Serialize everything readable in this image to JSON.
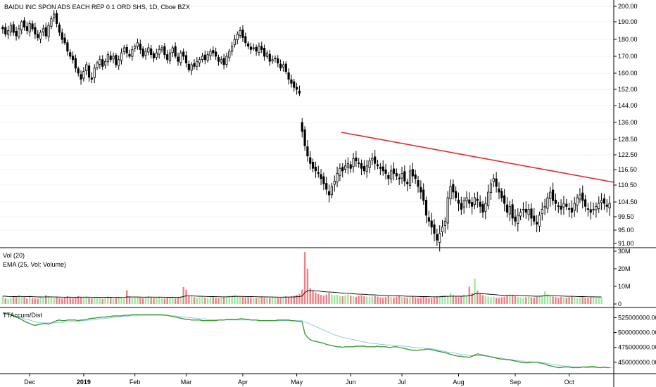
{
  "header": {
    "title": "BAIDU INC SPON ADS EACH REP 0.1 ORD SHS, 1D, Cboe BZX"
  },
  "x_axis": {
    "labels": [
      "Dec",
      "2019",
      "Feb",
      "Mar",
      "Apr",
      "May",
      "Jun",
      "Jul",
      "Aug",
      "Sep",
      "Oct"
    ],
    "label_index": [
      10,
      30,
      49,
      68,
      89,
      109,
      129,
      148,
      169,
      190,
      210
    ]
  },
  "colors": {
    "up": "#ffffff",
    "down": "#000000",
    "wick": "#000000",
    "trendline": "#e8292c",
    "vol_up": "#9ee89e",
    "vol_down": "#f07f84",
    "ema": "#000000",
    "accum": "#3f9c35",
    "accum_ma": "#8ec9e6"
  },
  "chart_data": [
    {
      "type": "candlestick",
      "pane": "price",
      "title": "BAIDU INC SPON ADS EACH REP 0.1 ORD SHS, 1D, Cboe BZX",
      "y_ticks": [
        91.0,
        95.0,
        99.5,
        104.5,
        110.5,
        116.5,
        122.5,
        128.5,
        136.0,
        144.0,
        152.0,
        160.0,
        170.0,
        180.0,
        190.0,
        200.0
      ],
      "ylim": [
        89.5,
        203
      ],
      "num_bars": 226,
      "legend": null,
      "closes": [
        186,
        183,
        185,
        188,
        184,
        182,
        186,
        190,
        187,
        185,
        189,
        186,
        183,
        181,
        184,
        186,
        182,
        188,
        192,
        195,
        189,
        184,
        180,
        178,
        173,
        170,
        168,
        163,
        160,
        157,
        161,
        165,
        158,
        157,
        163,
        166,
        168,
        164,
        167,
        171,
        168,
        170,
        165,
        168,
        172,
        175,
        172,
        170,
        174,
        176,
        178,
        174,
        170,
        173,
        175,
        171,
        169,
        172,
        174,
        175,
        171,
        168,
        172,
        175,
        170,
        167,
        172,
        170,
        166,
        162,
        165,
        164,
        167,
        168,
        170,
        168,
        171,
        173,
        172,
        170,
        167,
        168,
        165,
        170,
        173,
        176,
        180,
        183,
        185,
        181,
        178,
        176,
        174,
        175,
        173,
        176,
        174,
        170,
        172,
        167,
        168,
        169,
        166,
        163,
        165,
        161,
        157,
        155,
        153,
        152,
        150,
        132,
        126,
        122,
        119,
        117,
        116,
        115,
        113,
        111,
        109,
        107,
        110,
        112,
        115,
        117,
        116,
        118,
        119,
        117,
        121,
        120,
        119,
        117,
        116,
        118,
        120,
        121,
        119,
        118,
        117,
        116,
        115,
        113,
        116,
        115,
        114,
        113,
        115,
        112,
        111,
        116,
        114,
        113,
        110,
        108,
        105,
        100,
        98,
        96,
        94,
        92,
        94,
        96,
        98,
        106,
        110,
        108,
        106,
        104,
        102,
        105,
        106,
        104,
        103,
        106,
        105,
        103,
        101,
        104,
        108,
        111,
        113,
        110,
        108,
        106,
        104,
        101,
        103,
        99,
        98,
        100,
        101,
        102,
        101,
        102,
        99,
        98,
        97,
        100,
        102,
        103,
        106,
        108,
        105,
        104,
        103,
        102,
        104,
        103,
        102,
        101,
        104,
        106,
        107,
        105,
        103,
        102,
        101,
        102,
        103,
        104,
        105,
        104,
        103,
        104
      ]
    },
    {
      "type": "bar",
      "pane": "volume",
      "series_labels": [
        "Vol (20)",
        "EMA (25, Vol: Volume)"
      ],
      "y_ticks_labels": [
        "0",
        "10M",
        "20M",
        "30M"
      ],
      "y_ticks": [
        0,
        10,
        20,
        30
      ],
      "ylim": [
        0,
        30
      ],
      "units": "millions",
      "values": [
        4.5,
        3.2,
        2.8,
        3.6,
        4.1,
        3.8,
        5.2,
        4.4,
        3.9,
        3.1,
        4.8,
        3.5,
        3.2,
        3.0,
        4.2,
        3.6,
        5.0,
        4.1,
        3.7,
        3.3,
        4.0,
        3.4,
        3.1,
        3.6,
        4.5,
        3.8,
        3.2,
        4.0,
        4.4,
        3.9,
        3.6,
        4.2,
        3.5,
        3.3,
        3.8,
        4.1,
        3.4,
        3.0,
        3.9,
        4.3,
        3.7,
        3.2,
        3.5,
        3.9,
        3.6,
        3.1,
        7.8,
        4.2,
        3.5,
        3.8,
        4.0,
        3.6,
        3.3,
        3.9,
        4.4,
        3.7,
        3.4,
        3.8,
        4.2,
        3.5,
        3.0,
        3.6,
        3.9,
        4.1,
        3.3,
        3.8,
        4.5,
        9.6,
        8.1,
        4.7,
        4.3,
        3.9,
        3.5,
        3.8,
        4.2,
        3.6,
        3.3,
        3.9,
        4.1,
        3.7,
        3.4,
        3.6,
        4.0,
        4.3,
        4.6,
        4.9,
        5.3,
        4.8,
        4.4,
        4.0,
        3.8,
        4.2,
        3.9,
        3.6,
        3.4,
        3.8,
        4.1,
        3.6,
        3.3,
        3.5,
        3.9,
        3.7,
        3.4,
        3.6,
        4.1,
        4.4,
        4.0,
        4.3,
        4.7,
        5.1,
        5.8,
        8.2,
        29.5,
        20.1,
        8.9,
        7.2,
        6.5,
        5.6,
        5.1,
        4.8,
        5.3,
        6.4,
        5.5,
        4.9,
        5.2,
        4.6,
        4.4,
        4.9,
        5.5,
        4.7,
        4.3,
        4.1,
        4.6,
        5.0,
        4.4,
        4.2,
        3.9,
        4.3,
        4.7,
        4.2,
        3.8,
        3.6,
        4.0,
        4.5,
        3.9,
        3.7,
        4.1,
        4.6,
        4.0,
        3.7,
        3.5,
        3.9,
        4.4,
        3.8,
        3.5,
        3.7,
        4.2,
        3.9,
        3.6,
        3.4,
        3.8,
        4.3,
        4.7,
        5.0,
        5.2,
        4.6,
        6.1,
        4.8,
        4.2,
        3.9,
        4.5,
        5.2,
        4.8,
        9.8,
        6.3,
        14.5,
        7.6,
        5.9,
        5.0,
        4.6,
        4.2,
        3.8,
        4.1,
        3.6,
        3.4,
        3.8,
        4.2,
        4.9,
        5.4,
        4.8,
        4.4,
        4.0,
        3.7,
        3.4,
        3.9,
        4.3,
        3.8,
        3.6,
        4.0,
        4.8,
        5.1,
        7.2,
        5.6,
        4.6,
        4.2,
        3.9,
        3.6,
        4.1,
        3.7,
        3.5,
        3.9,
        4.3,
        3.8,
        3.5,
        3.7,
        4.1,
        3.6,
        3.4,
        3.8,
        4.2,
        3.7,
        3.5,
        3.6
      ]
    },
    {
      "type": "line",
      "pane": "accum",
      "series_labels": [
        "TTAccum/Dist"
      ],
      "y_ticks_labels": [
        "450000000.00",
        "475000000.00",
        "500000000.00",
        "525000000.00"
      ],
      "y_ticks": [
        450000000,
        475000000,
        500000000,
        525000000
      ],
      "ylim": [
        432000000,
        535000000
      ],
      "values_millions": [
        533,
        532,
        531,
        530,
        528,
        526,
        524,
        522,
        519,
        517,
        515,
        513,
        512,
        513,
        514,
        515,
        515,
        514,
        516,
        518,
        520,
        521,
        520,
        520,
        521,
        521,
        521,
        521,
        520,
        521,
        521,
        522,
        523,
        524,
        524,
        525,
        525,
        526,
        526,
        527,
        527,
        528,
        528,
        528,
        528,
        529,
        529,
        529,
        530,
        530,
        530,
        530,
        530,
        530,
        530,
        530,
        530,
        530,
        530,
        530,
        529,
        529,
        528,
        527,
        526,
        525,
        524,
        523,
        522,
        522,
        521,
        521,
        521,
        521,
        520,
        520,
        520,
        520,
        520,
        520,
        521,
        521,
        521,
        522,
        522,
        522,
        522,
        522,
        523,
        523,
        522,
        522,
        521,
        521,
        521,
        520,
        520,
        520,
        520,
        520,
        520,
        520,
        521,
        521,
        521,
        521,
        521,
        520,
        520,
        519,
        519,
        518,
        498,
        492,
        488,
        486,
        485,
        484,
        483,
        482,
        480,
        479,
        478,
        477,
        476,
        476,
        475,
        476,
        476,
        476,
        476,
        477,
        477,
        477,
        477,
        476,
        476,
        476,
        476,
        477,
        476,
        476,
        476,
        475,
        475,
        476,
        476,
        475,
        474,
        473,
        472,
        471,
        470,
        470,
        470,
        471,
        471,
        472,
        472,
        471,
        470,
        469,
        468,
        467,
        466,
        465,
        463,
        462,
        461,
        460,
        460,
        459,
        459,
        458,
        460,
        462,
        464,
        463,
        462,
        461,
        460,
        459,
        458,
        457,
        456,
        455,
        455,
        454,
        454,
        453,
        452,
        451,
        450,
        449,
        449,
        449,
        450,
        450,
        450,
        449,
        448,
        447,
        445,
        444,
        443,
        442,
        441,
        441,
        442,
        442,
        442,
        441,
        441,
        441,
        441,
        442,
        442,
        442,
        443,
        443,
        442,
        441,
        441,
        442,
        441,
        441
      ],
      "ma_values_millions": [
        531,
        531,
        530,
        529,
        528,
        527,
        526,
        525,
        523,
        522,
        521,
        519,
        518,
        517,
        517,
        516,
        516,
        516,
        516,
        516,
        517,
        517,
        517,
        518,
        518,
        518,
        519,
        519,
        519,
        520,
        520,
        520,
        521,
        521,
        522,
        522,
        523,
        523,
        524,
        524,
        525,
        525,
        526,
        526,
        527,
        527,
        527,
        528,
        528,
        528,
        529,
        529,
        529,
        529,
        529,
        529,
        529,
        529,
        529,
        529,
        529,
        529,
        528,
        528,
        528,
        527,
        527,
        526,
        526,
        525,
        525,
        524,
        524,
        523,
        523,
        523,
        522,
        522,
        522,
        521,
        521,
        521,
        521,
        521,
        521,
        521,
        521,
        521,
        521,
        521,
        521,
        521,
        521,
        521,
        521,
        521,
        520,
        520,
        520,
        520,
        520,
        520,
        520,
        520,
        520,
        520,
        520,
        520,
        520,
        520,
        520,
        520,
        518,
        516,
        514,
        512,
        510,
        508,
        506,
        504,
        502,
        500,
        498,
        496,
        495,
        493,
        492,
        491,
        490,
        489,
        488,
        487,
        486,
        485,
        484,
        483,
        482,
        482,
        481,
        481,
        480,
        480,
        479,
        479,
        479,
        478,
        478,
        478,
        477,
        477,
        476,
        476,
        475,
        475,
        474,
        474,
        474,
        473,
        473,
        473,
        472,
        471,
        470,
        469,
        468,
        467,
        466,
        466,
        465,
        464,
        463,
        463,
        462,
        461,
        461,
        461,
        461,
        461,
        461,
        460,
        460,
        459,
        459,
        458,
        457,
        457,
        456,
        455,
        455,
        454,
        453,
        453,
        452,
        452,
        451,
        451,
        451,
        450,
        450,
        450,
        449,
        449,
        448,
        447,
        446,
        446,
        445,
        444,
        444,
        443,
        443,
        442,
        442,
        442,
        442,
        442,
        441,
        441,
        441,
        441,
        441,
        441,
        441,
        441,
        441,
        441,
        441
      ]
    }
  ]
}
